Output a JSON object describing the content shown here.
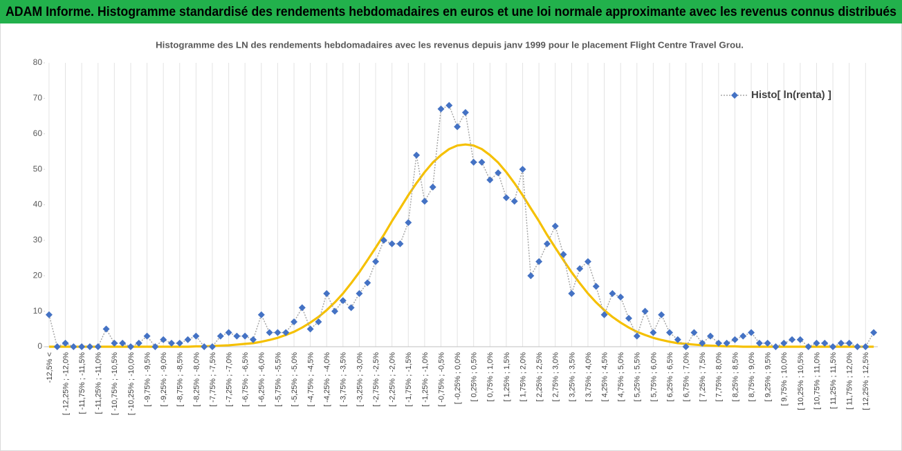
{
  "chart_data": {
    "type": "line",
    "title": "ADAM Informe. Histogramme standardisé des rendements hebdomadaires en euros et une loi normale approximante avec les revenus connus distribués",
    "subtitle": "Histogramme des LN des rendements hebdomadaires avec les revenus depuis janv 1999 pour le placement Flight Centre Travel Grou.",
    "categories": [
      "-12,5% <",
      null,
      "[ -12,25% ; -12,0%",
      null,
      "[ -11,75% ; -11,5%",
      null,
      "[ -11,25% ; -11,0%",
      null,
      "[ -10,75% ; -10,5%",
      null,
      "[ -10,25% ; -10,0%",
      null,
      "[ -9,75% ; -9,5%",
      null,
      "[ -9,25% ; -9,0%",
      null,
      "[ -8,75% ; -8,5%",
      null,
      "[ -8,25% ; -8,0%",
      null,
      "[ -7,75% ; -7,5%",
      null,
      "[ -7,25% ; -7,0%",
      null,
      "[ -6,75% ; -6,5%",
      null,
      "[ -6,25% ; -6,0%",
      null,
      "[ -5,75% ; -5,5%",
      null,
      "[ -5,25% ; -5,0%",
      null,
      "[ -4,75% ; -4,5%",
      null,
      "[ -4,25% ; -4,0%",
      null,
      "[ -3,75% ; -3,5%",
      null,
      "[ -3,25% ; -3,0%",
      null,
      "[ -2,75% ; -2,5%",
      null,
      "[ -2,25% ; -2,0%",
      null,
      "[ -1,75% ; -1,5%",
      null,
      "[ -1,25% ; -1,0%",
      null,
      "[ -0,75% ; -0,5%",
      null,
      "[ -0,25% ; 0,0%",
      null,
      "[ 0,25% ; 0,5%",
      null,
      "[ 0,75% ; 1,0%",
      null,
      "[ 1,25% ; 1,5%",
      null,
      "[ 1,75% ; 2,0%",
      null,
      "[ 2,25% ; 2,5%",
      null,
      "[ 2,75% ; 3,0%",
      null,
      "[ 3,25% ; 3,5%",
      null,
      "[ 3,75% ; 4,0%",
      null,
      "[ 4,25% ; 4,5%",
      null,
      "[ 4,75% ; 5,0%",
      null,
      "[ 5,25% ; 5,5%",
      null,
      "[ 5,75% ; 6,0%",
      null,
      "[ 6,25% ; 6,5%",
      null,
      "[ 6,75% ; 7,0%",
      null,
      "[ 7,25% ; 7,5%",
      null,
      "[ 7,75% ; 8,0%",
      null,
      "[ 8,25% ; 8,5%",
      null,
      "[ 8,75% ; 9,0%",
      null,
      "[ 9,25% ; 9,5%",
      null,
      "[ 9,75% ; 10,0%",
      null,
      "[ 10,25% ; 10,5%",
      null,
      "[ 10,75% ; 11,0%",
      null,
      "[ 11,25% ; 11,5%",
      null,
      "[ 11,75% ; 12,0%",
      null,
      "[ 12,25% ; 12,5%",
      null
    ],
    "series": [
      {
        "name": "Histo[ ln(renta) ]",
        "color": "#4472c4",
        "line_color": "#a6a6a6",
        "marker": "diamond",
        "values": [
          9,
          0,
          1,
          0,
          0,
          0,
          0,
          5,
          1,
          1,
          0,
          1,
          3,
          0,
          2,
          1,
          1,
          2,
          3,
          0,
          0,
          3,
          4,
          3,
          3,
          2,
          9,
          4,
          4,
          4,
          7,
          11,
          5,
          7,
          15,
          10,
          13,
          11,
          15,
          18,
          24,
          30,
          29,
          29,
          35,
          54,
          41,
          45,
          67,
          68,
          62,
          66,
          52,
          52,
          47,
          49,
          42,
          41,
          50,
          20,
          24,
          29,
          34,
          26,
          15,
          22,
          24,
          17,
          9,
          15,
          14,
          8,
          3,
          10,
          4,
          9,
          4,
          2,
          0,
          4,
          1,
          3,
          1,
          1,
          2,
          3,
          4,
          1,
          1,
          0,
          1,
          2,
          2,
          0,
          1,
          1,
          0,
          1,
          1,
          0,
          0,
          4
        ]
      },
      {
        "color": "#f5c000",
        "values": [
          0,
          0,
          0,
          0,
          0,
          0,
          0,
          0,
          0,
          0,
          0,
          0,
          0,
          0,
          0,
          0,
          0,
          0,
          0.1,
          0.1,
          0.2,
          0.3,
          0.4,
          0.6,
          0.8,
          1.0,
          1.4,
          1.9,
          2.5,
          3.3,
          4.2,
          5.4,
          6.8,
          8.4,
          10.3,
          12.5,
          15.0,
          17.9,
          21.0,
          24.4,
          27.9,
          31.5,
          35.4,
          39.0,
          42.7,
          46.1,
          49.2,
          51.9,
          54.0,
          55.7,
          56.7,
          57.0,
          56.7,
          55.7,
          54.0,
          51.9,
          49.2,
          46.1,
          42.7,
          39.0,
          35.4,
          31.5,
          27.9,
          24.4,
          21.0,
          17.9,
          15.0,
          12.5,
          10.3,
          8.4,
          6.8,
          5.4,
          4.2,
          3.3,
          2.5,
          1.9,
          1.4,
          1.0,
          0.8,
          0.6,
          0.4,
          0.3,
          0.2,
          0.1,
          0.1,
          0,
          0,
          0,
          0,
          0,
          0,
          0,
          0,
          0,
          0,
          0,
          0,
          0,
          0,
          0,
          0,
          0
        ]
      }
    ],
    "ylim": [
      0,
      80
    ],
    "yticks": [
      0,
      10,
      20,
      30,
      40,
      50,
      60,
      70,
      80
    ],
    "grid": "x",
    "legend": "top-right"
  }
}
